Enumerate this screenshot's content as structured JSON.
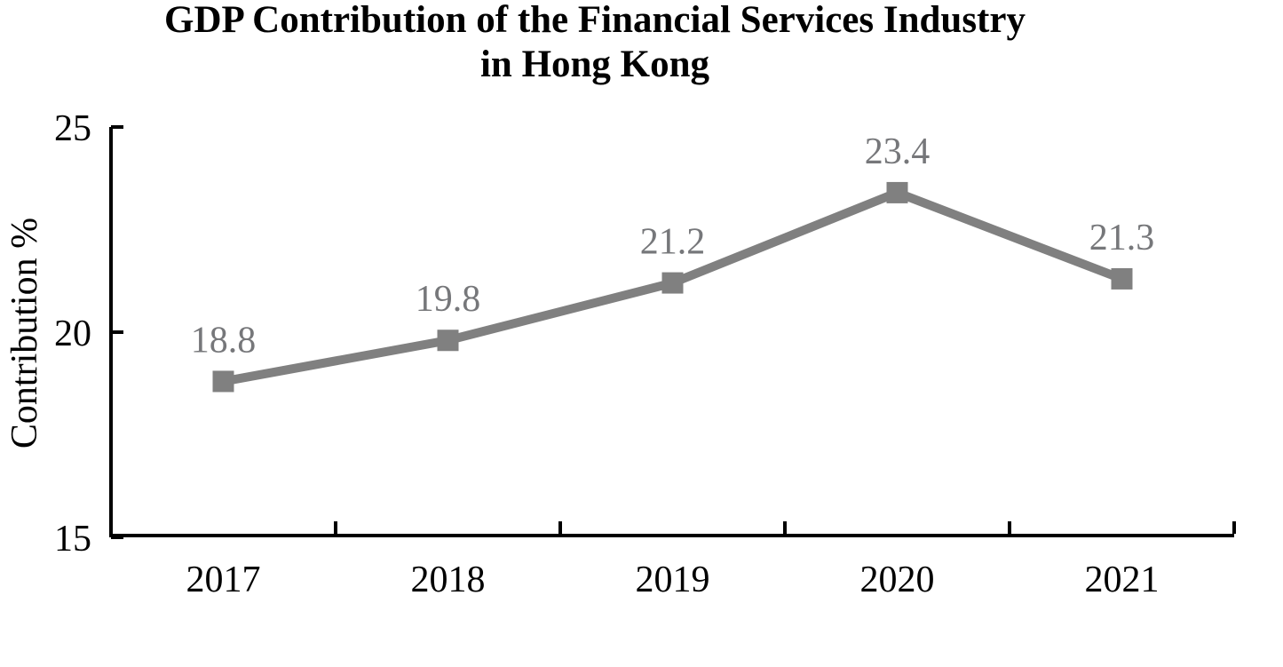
{
  "chart_data": {
    "type": "line",
    "title": "GDP Contribution of the Financial Services Industry in Hong Kong",
    "title_lines": [
      "GDP Contribution of the Financial Services Industry",
      "in Hong Kong"
    ],
    "ylabel": "Contribution %",
    "xlabel": "",
    "categories": [
      "2017",
      "2018",
      "2019",
      "2020",
      "2021"
    ],
    "series": [
      {
        "values": [
          18.8,
          19.8,
          21.2,
          23.4,
          21.3
        ]
      }
    ],
    "data_labels": [
      "18.8",
      "19.8",
      "21.2",
      "23.4",
      "21.3"
    ],
    "ylim": [
      15,
      25
    ],
    "yticks": [
      25,
      20,
      15
    ],
    "grid": false,
    "legend": "none",
    "marker": "square",
    "colors": {
      "series_line": "#808080",
      "marker_fill": "#808080",
      "data_label": "#76777a",
      "axis": "#000000",
      "tick_label": "#000000",
      "title": "#000000",
      "background": "#ffffff"
    }
  }
}
